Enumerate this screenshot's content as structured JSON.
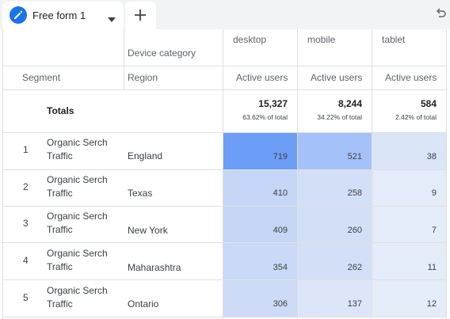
{
  "tab": {
    "label": "Free form 1",
    "icon": "pencil-icon"
  },
  "icons": {
    "add": "plus-icon",
    "undo": "undo-icon",
    "caret": "caret-down-icon"
  },
  "colors": {
    "accent": "#1a73e8",
    "heat_strong": "#6d9ef7",
    "heat_mid": "#a4c2f9",
    "heat_light": "#c5d6f7",
    "heat_faint": "#dbe5f8"
  },
  "header": {
    "device_category_label": "Device category",
    "segment_label": "Segment",
    "region_label": "Region",
    "devices": [
      "desktop",
      "mobile",
      "tablet"
    ],
    "metric_label": "Active users"
  },
  "totals": {
    "label": "Totals",
    "values": [
      "15,327",
      "8,244",
      "584"
    ],
    "percents": [
      "63.62% of total",
      "34.22% of total",
      "2.42% of total"
    ]
  },
  "rows": [
    {
      "num": "1",
      "segment": "Organic Serch Traffic",
      "region": "England",
      "values": [
        "719",
        "521",
        "38"
      ]
    },
    {
      "num": "2",
      "segment": "Organic Serch Traffic",
      "region": "Texas",
      "values": [
        "410",
        "258",
        "9"
      ]
    },
    {
      "num": "3",
      "segment": "Organic Serch Traffic",
      "region": "New York",
      "values": [
        "409",
        "260",
        "7"
      ]
    },
    {
      "num": "4",
      "segment": "Organic Serch Traffic",
      "region": "Maharashtra",
      "values": [
        "354",
        "262",
        "11"
      ]
    },
    {
      "num": "5",
      "segment": "Organic Serch Traffic",
      "region": "Ontario",
      "values": [
        "306",
        "137",
        "12"
      ]
    }
  ]
}
